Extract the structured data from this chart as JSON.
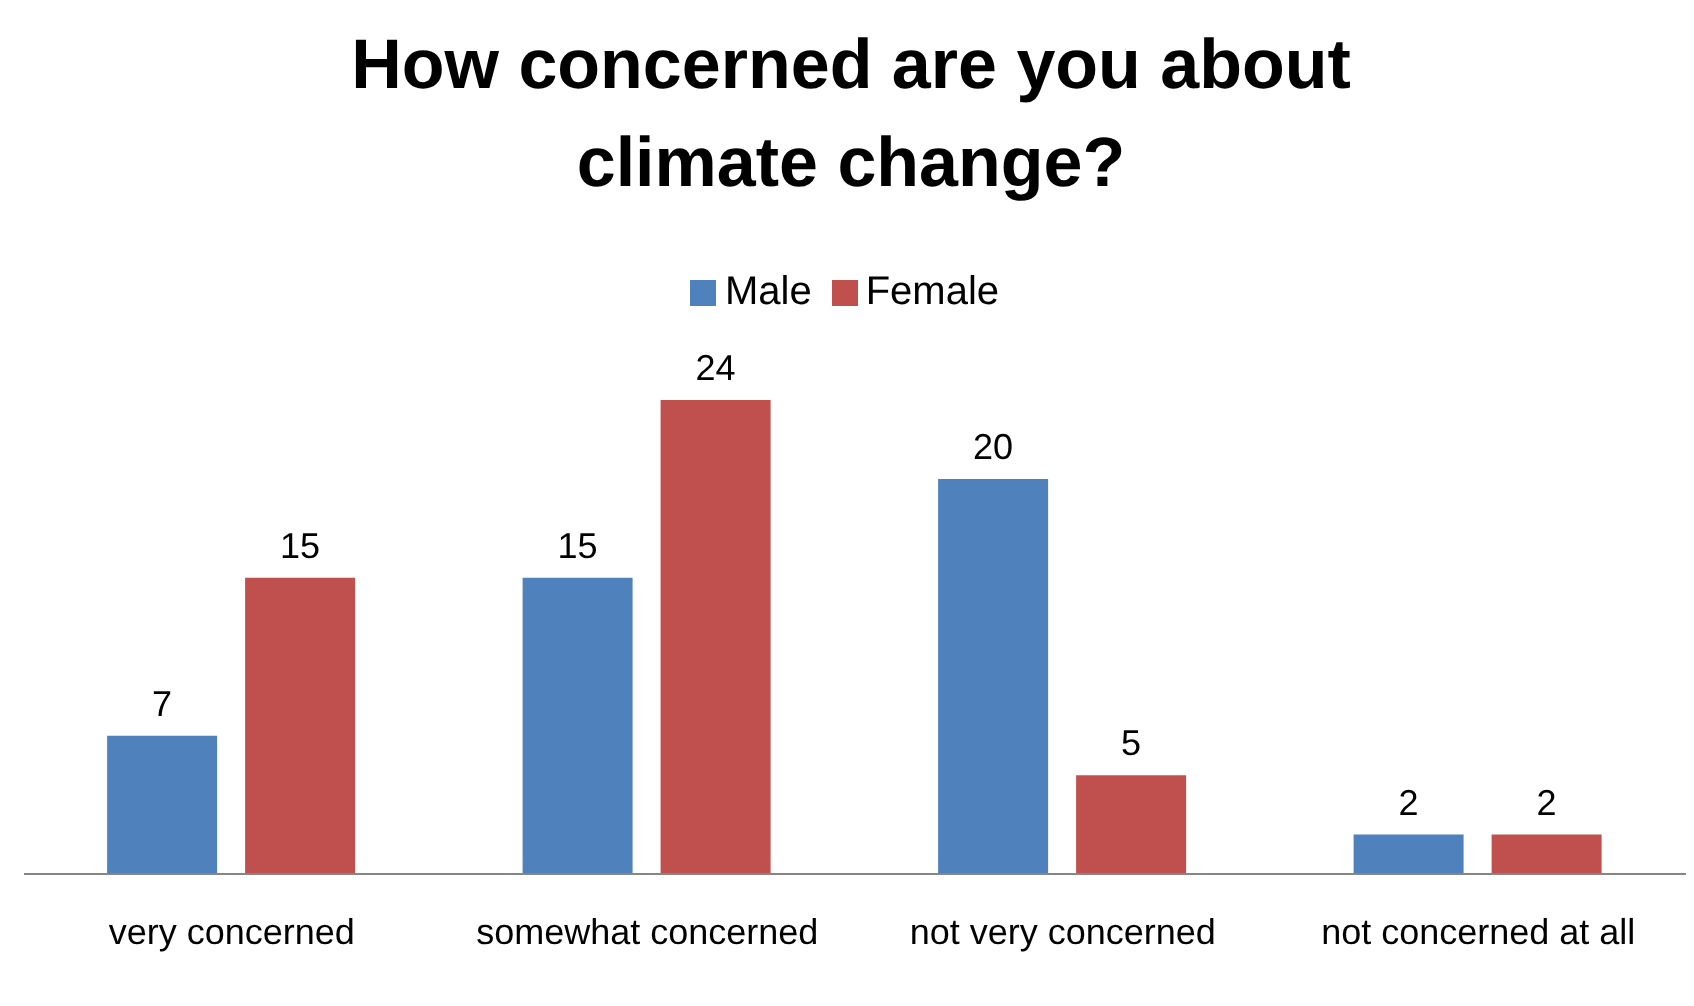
{
  "chart_data": {
    "type": "bar",
    "title": "How concerned are you about climate change?",
    "categories": [
      "very concerned",
      "somewhat concerned",
      "not very concerned",
      "not concerned at all"
    ],
    "series": [
      {
        "name": "Male",
        "color": "#4f81bd",
        "values": [
          7,
          15,
          20,
          2
        ]
      },
      {
        "name": "Female",
        "color": "#c0504d",
        "values": [
          15,
          24,
          5,
          2
        ]
      }
    ],
    "data_labels": true,
    "legend": "top",
    "grid": false
  }
}
